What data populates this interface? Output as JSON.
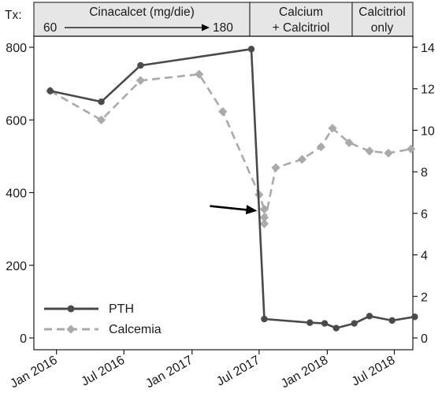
{
  "treatment_banner": {
    "label": "Tx:",
    "cells": [
      {
        "line1": "Cinacalcet (mg/die)",
        "dose_start": "60",
        "dose_end": "180"
      },
      {
        "line1": "Calcium",
        "line2": "+ Calcitriol"
      },
      {
        "line1": "Calcitriol",
        "line2": "only"
      }
    ]
  },
  "colors": {
    "pth": "#4a4a4a",
    "calcemia": "#aaaaaa",
    "banner_fill": "#e6e6e6",
    "axis": "#1a1a1a",
    "arrow": "#000000"
  },
  "chart_data": {
    "type": "line",
    "x_is_date": true,
    "x_ticks": [
      "Jan 2016",
      "Jul 2016",
      "Jan 2017",
      "Jul 2017",
      "Jan 2018",
      "Jul 2018"
    ],
    "xlim": [
      "2015-11-01",
      "2018-08-20"
    ],
    "y_left": {
      "ylim": [
        0,
        800
      ],
      "ticks": [
        0,
        200,
        400,
        600,
        800
      ]
    },
    "y_right": {
      "ylim": [
        0,
        14
      ],
      "ticks": [
        0,
        2,
        4,
        6,
        8,
        10,
        12,
        14
      ]
    },
    "grid": false,
    "legend_position": "bottom-left",
    "series": [
      {
        "name": "PTH",
        "axis": "left",
        "style": "solid",
        "marker": "circle",
        "x": [
          "2015-12-15",
          "2016-05-01",
          "2016-08-15",
          "2017-06-10",
          "2017-07-15",
          "2017-11-15",
          "2017-12-25",
          "2018-01-25",
          "2018-03-15",
          "2018-04-25",
          "2018-06-25",
          "2018-08-25"
        ],
        "y": [
          680,
          650,
          750,
          795,
          52,
          42,
          40,
          27,
          40,
          60,
          48,
          58
        ]
      },
      {
        "name": "Calcemia",
        "axis": "right",
        "style": "dashed",
        "marker": "diamond",
        "x": [
          "2015-12-15",
          "2016-05-01",
          "2016-08-15",
          "2017-01-20",
          "2017-03-25",
          "2017-07-01",
          "2017-07-15",
          "2017-07-15",
          "2017-07-15",
          "2017-08-15",
          "2017-10-25",
          "2017-12-15",
          "2018-01-15",
          "2018-03-01",
          "2018-04-25",
          "2018-06-15",
          "2018-08-15"
        ],
        "y": [
          11.9,
          10.5,
          12.4,
          12.7,
          10.9,
          6.9,
          6.2,
          5.8,
          5.5,
          8.2,
          8.6,
          9.2,
          10.1,
          9.4,
          9.0,
          8.9,
          9.1
        ]
      }
    ],
    "annotation": {
      "type": "arrow",
      "target_series": "Calcemia",
      "target_date": "2017-07-15",
      "target_value": 6.2
    }
  }
}
